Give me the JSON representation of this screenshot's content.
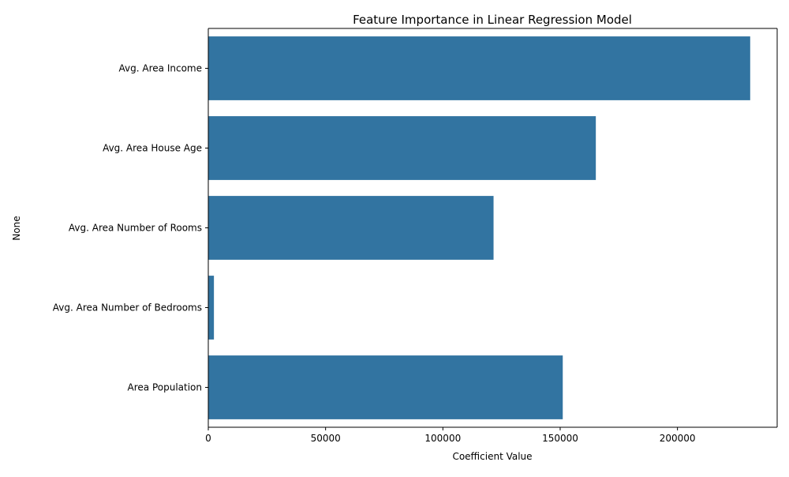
{
  "chart_data": {
    "type": "bar",
    "orientation": "horizontal",
    "title": "Feature Importance in Linear Regression Model",
    "xlabel": "Coefficient Value",
    "ylabel": "None",
    "categories": [
      "Avg. Area Income",
      "Avg. Area House Age",
      "Avg. Area Number of Rooms",
      "Avg. Area Number of Bedrooms",
      "Area Population"
    ],
    "values": [
      231000,
      165200,
      121600,
      2400,
      151100
    ],
    "xlim": [
      0,
      242500
    ],
    "x_ticks": [
      0,
      50000,
      100000,
      150000,
      200000
    ],
    "x_tick_labels": [
      "0",
      "50000",
      "100000",
      "150000",
      "200000"
    ],
    "bar_color": "#3274a1",
    "grid": false,
    "legend": "none"
  }
}
